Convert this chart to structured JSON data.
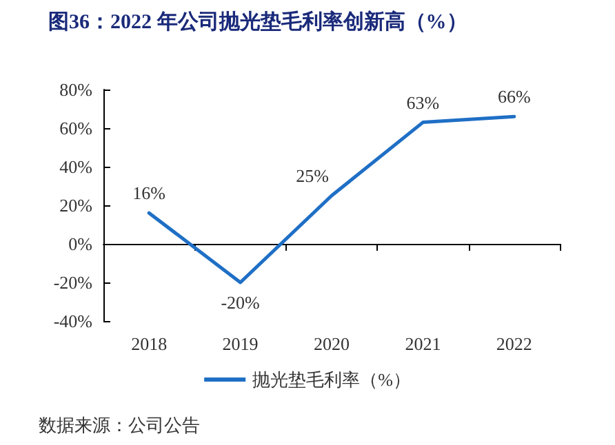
{
  "chart_data": {
    "type": "line",
    "title": "图36：2022 年公司抛光垫毛利率创新高（%）",
    "annotations": [
      "数据来源：公司公告"
    ],
    "categories": [
      "2018",
      "2019",
      "2020",
      "2021",
      "2022"
    ],
    "series": [
      {
        "name": "抛光垫毛利率（%）",
        "color": "#1f6fc5",
        "values": [
          16,
          -20,
          25,
          63,
          66
        ],
        "value_labels": [
          "16%",
          "-20%",
          "25%",
          "63%",
          "66%"
        ]
      }
    ],
    "ylim": [
      -40,
      80
    ],
    "yticks": [
      {
        "value": -40,
        "label": "-40%"
      },
      {
        "value": -20,
        "label": "-20%"
      },
      {
        "value": 0,
        "label": "0%"
      },
      {
        "value": 20,
        "label": "20%"
      },
      {
        "value": 40,
        "label": "40%"
      },
      {
        "value": 60,
        "label": "60%"
      },
      {
        "value": 80,
        "label": "80%"
      }
    ],
    "legend": "bottom",
    "marker": "none",
    "line_style": "solid"
  }
}
